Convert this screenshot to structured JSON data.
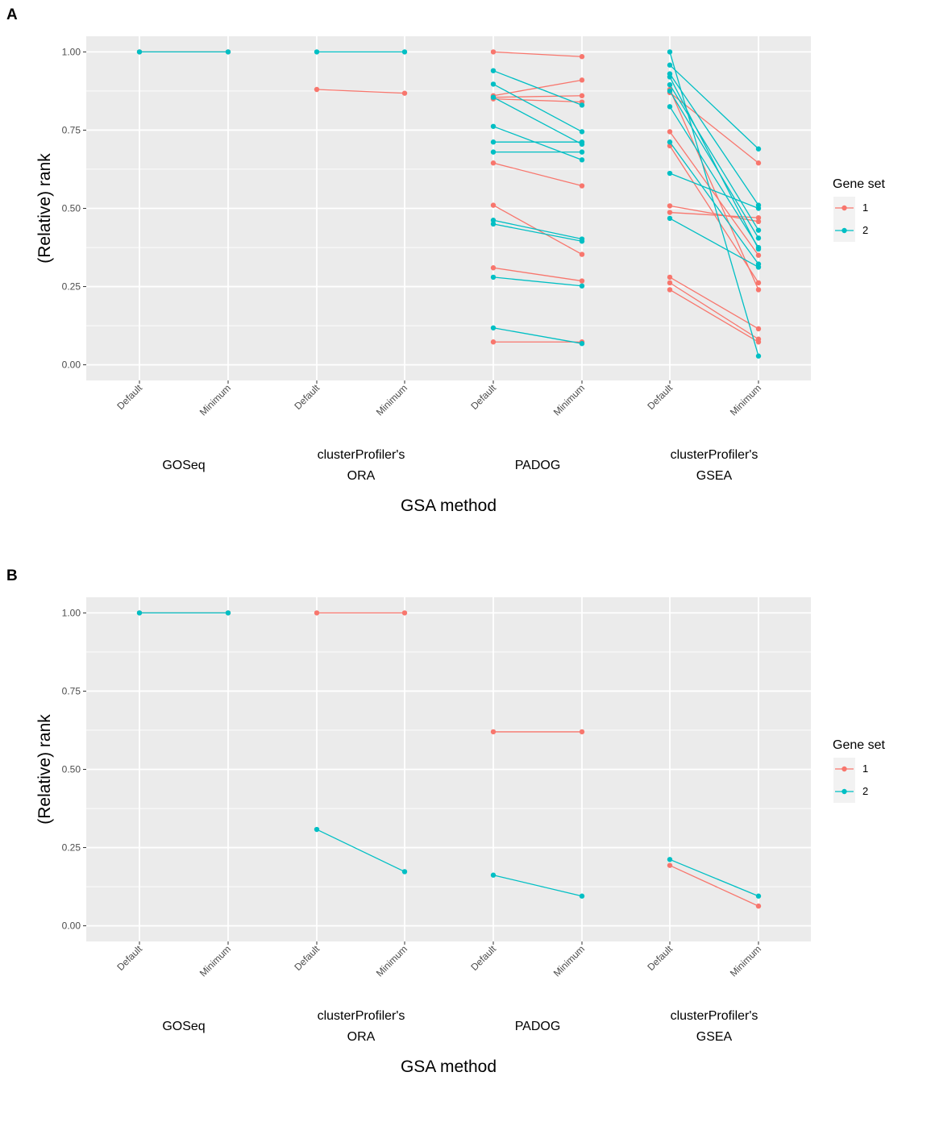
{
  "chart_data": [
    {
      "panel": "A",
      "type": "line",
      "ylabel": "(Relative) rank",
      "xlabel": "GSA method",
      "ylim": [
        -0.05,
        1.05
      ],
      "yticks": [
        "0.00",
        "0.25",
        "0.50",
        "0.75",
        "1.00"
      ],
      "ytick_values": [
        0,
        0.25,
        0.5,
        0.75,
        1.0
      ],
      "categories": [
        "Default",
        "Minimum",
        "Default",
        "Minimum",
        "Default",
        "Minimum",
        "Default",
        "Minimum"
      ],
      "methods": [
        {
          "lines": [
            "GOSeq"
          ]
        },
        {
          "lines": [
            "clusterProfiler's",
            "ORA"
          ]
        },
        {
          "lines": [
            "PADOG"
          ]
        },
        {
          "lines": [
            "clusterProfiler's",
            "GSEA"
          ]
        }
      ],
      "legend": {
        "title": "Gene set",
        "entries": [
          "1",
          "2"
        ],
        "colors": [
          "#F8766D",
          "#00BFC4"
        ]
      },
      "series": [
        {
          "name": "1",
          "segments": [
            [
              0,
              1.0,
              1,
              1.0
            ],
            [
              2,
              0.88,
              3,
              0.868
            ],
            [
              4,
              1.0,
              5,
              0.985
            ],
            [
              4,
              0.86,
              5,
              0.91
            ],
            [
              4,
              0.855,
              5,
              0.86
            ],
            [
              4,
              0.85,
              5,
              0.84
            ],
            [
              4,
              0.645,
              5,
              0.572
            ],
            [
              4,
              0.51,
              5,
              0.353
            ],
            [
              4,
              0.31,
              5,
              0.268
            ],
            [
              4,
              0.073,
              5,
              0.073
            ],
            [
              6,
              0.87,
              7,
              0.645
            ],
            [
              6,
              0.745,
              7,
              0.35
            ],
            [
              6,
              0.7,
              7,
              0.262
            ],
            [
              6,
              0.508,
              7,
              0.458
            ],
            [
              6,
              0.487,
              7,
              0.47
            ],
            [
              6,
              0.28,
              7,
              0.115
            ],
            [
              6,
              0.262,
              7,
              0.082
            ],
            [
              6,
              0.24,
              7,
              0.073
            ],
            [
              6,
              0.88,
              7,
              0.24
            ]
          ]
        },
        {
          "name": "2",
          "segments": [
            [
              0,
              1.0,
              1,
              1.0
            ],
            [
              2,
              1.0,
              3,
              1.0
            ],
            [
              4,
              0.94,
              5,
              0.83
            ],
            [
              4,
              0.897,
              5,
              0.745
            ],
            [
              4,
              0.855,
              5,
              0.705
            ],
            [
              4,
              0.762,
              5,
              0.655
            ],
            [
              4,
              0.712,
              5,
              0.712
            ],
            [
              4,
              0.68,
              5,
              0.68
            ],
            [
              4,
              0.462,
              5,
              0.402
            ],
            [
              4,
              0.45,
              5,
              0.395
            ],
            [
              4,
              0.28,
              5,
              0.252
            ],
            [
              4,
              0.118,
              5,
              0.068
            ],
            [
              6,
              1.0,
              7,
              0.028
            ],
            [
              6,
              0.958,
              7,
              0.69
            ],
            [
              6,
              0.93,
              7,
              0.51
            ],
            [
              6,
              0.895,
              7,
              0.43
            ],
            [
              6,
              0.875,
              7,
              0.405
            ],
            [
              6,
              0.825,
              7,
              0.375
            ],
            [
              6,
              0.712,
              7,
              0.322
            ],
            [
              6,
              0.612,
              7,
              0.5
            ],
            [
              6,
              0.468,
              7,
              0.312
            ],
            [
              6,
              0.92,
              7,
              0.37
            ]
          ]
        }
      ]
    },
    {
      "panel": "B",
      "type": "line",
      "ylabel": "(Relative) rank",
      "xlabel": "GSA method",
      "ylim": [
        -0.05,
        1.05
      ],
      "yticks": [
        "0.00",
        "0.25",
        "0.50",
        "0.75",
        "1.00"
      ],
      "ytick_values": [
        0,
        0.25,
        0.5,
        0.75,
        1.0
      ],
      "categories": [
        "Default",
        "Minimum",
        "Default",
        "Minimum",
        "Default",
        "Minimum",
        "Default",
        "Minimum"
      ],
      "methods": [
        {
          "lines": [
            "GOSeq"
          ]
        },
        {
          "lines": [
            "clusterProfiler's",
            "ORA"
          ]
        },
        {
          "lines": [
            "PADOG"
          ]
        },
        {
          "lines": [
            "clusterProfiler's",
            "GSEA"
          ]
        }
      ],
      "legend": {
        "title": "Gene set",
        "entries": [
          "1",
          "2"
        ],
        "colors": [
          "#F8766D",
          "#00BFC4"
        ]
      },
      "series": [
        {
          "name": "1",
          "segments": [
            [
              0,
              1.0,
              1,
              1.0
            ],
            [
              2,
              1.0,
              3,
              1.0
            ],
            [
              4,
              0.62,
              5,
              0.62
            ],
            [
              6,
              0.193,
              7,
              0.063
            ]
          ]
        },
        {
          "name": "2",
          "segments": [
            [
              0,
              1.0,
              1,
              1.0
            ],
            [
              2,
              0.308,
              3,
              0.173
            ],
            [
              4,
              0.162,
              5,
              0.095
            ],
            [
              6,
              0.212,
              7,
              0.095
            ]
          ]
        }
      ]
    }
  ]
}
